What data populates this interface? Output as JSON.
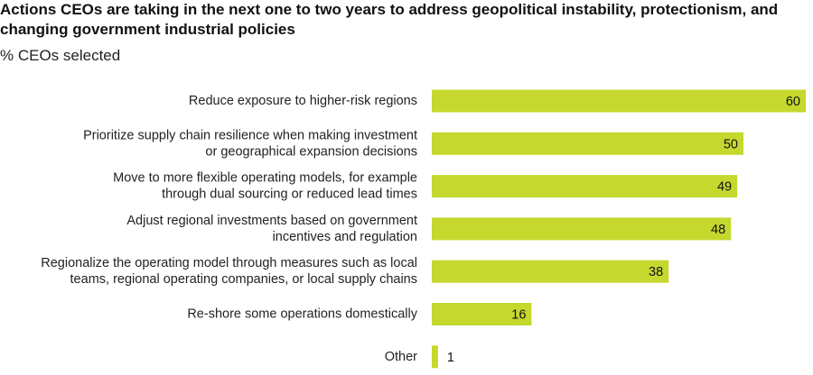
{
  "chart_data": {
    "type": "bar",
    "orientation": "horizontal",
    "title": "Actions CEOs are taking in the next one to two years to address geopolitical instability, protectionism, and changing government industrial policies",
    "subtitle": "% CEOs selected",
    "xlabel": "",
    "ylabel": "",
    "xlim": [
      0,
      60
    ],
    "bar_color": "#c4d82e",
    "categories": [
      [
        "Reduce exposure to higher-risk regions"
      ],
      [
        "Prioritize supply chain resilience when making investment",
        "or geographical expansion decisions"
      ],
      [
        "Move to more flexible operating models, for example",
        "through dual sourcing or reduced lead times"
      ],
      [
        "Adjust regional investments based on government",
        "incentives and regulation"
      ],
      [
        "Regionalize the operating model through measures such as local",
        "teams, regional operating companies, or local supply chains"
      ],
      [
        "Re-shore some operations domestically"
      ],
      [
        "Other"
      ]
    ],
    "values": [
      60,
      50,
      49,
      48,
      38,
      16,
      1
    ]
  }
}
